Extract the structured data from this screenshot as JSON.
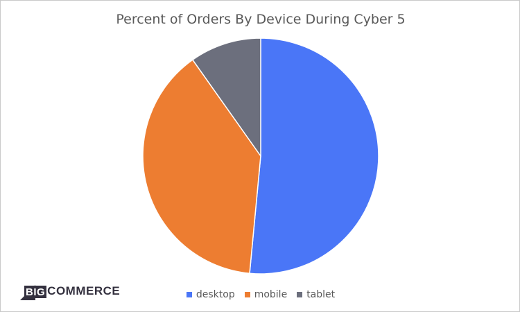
{
  "chart_data": {
    "type": "pie",
    "title": "Percent of Orders By Device During Cyber 5",
    "categories": [
      "desktop",
      "mobile",
      "tablet"
    ],
    "values": [
      51.5,
      38.7,
      9.8
    ],
    "colors": [
      "#4a76f7",
      "#ed7d31",
      "#6c6f7d"
    ],
    "start_angle_deg": 0,
    "direction": "clockwise",
    "legend_position": "bottom"
  },
  "logo": {
    "prefix": "BIG",
    "suffix": "COMMERCE",
    "text": "BIGCOMMERCE",
    "mark_color": "#34313f"
  }
}
